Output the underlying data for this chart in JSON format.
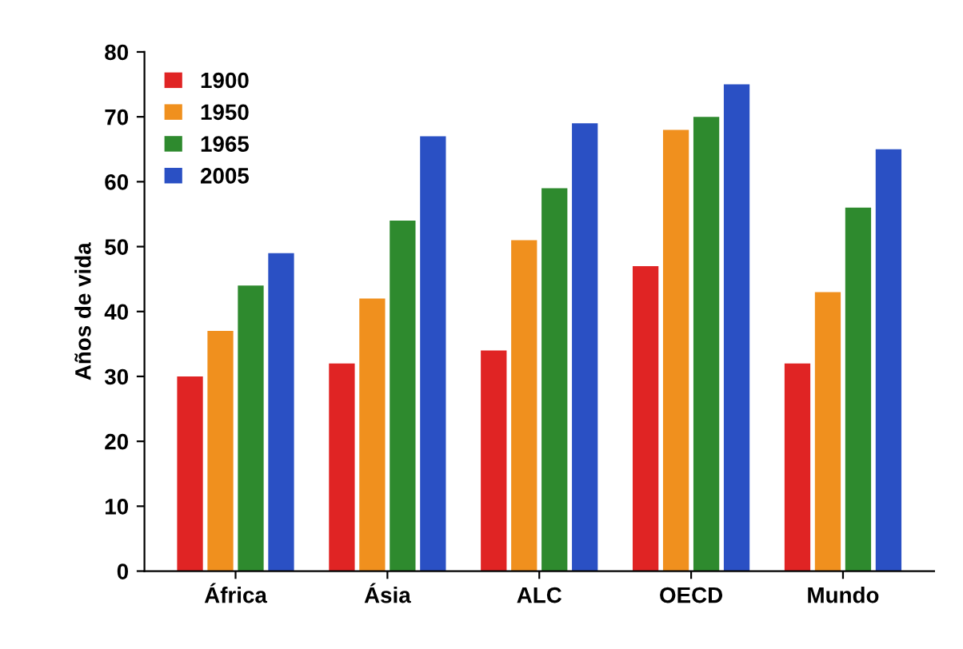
{
  "chart_data": {
    "type": "bar",
    "ylabel": "Años de vida",
    "categories": [
      "África",
      "Ásia",
      "ALC",
      "OECD",
      "Mundo"
    ],
    "series": [
      {
        "name": "1900",
        "color": "#e02424",
        "values": [
          30,
          32,
          34,
          47,
          32
        ]
      },
      {
        "name": "1950",
        "color": "#f0901e",
        "values": [
          37,
          42,
          51,
          68,
          43
        ]
      },
      {
        "name": "1965",
        "color": "#2e8a2e",
        "values": [
          44,
          54,
          59,
          70,
          56
        ]
      },
      {
        "name": "2005",
        "color": "#2a50c4",
        "values": [
          49,
          67,
          69,
          75,
          65
        ]
      }
    ],
    "ylim": [
      0,
      80
    ],
    "yticks": [
      0,
      10,
      20,
      30,
      40,
      50,
      60,
      70,
      80
    ],
    "grid": false,
    "legend": "top left"
  }
}
